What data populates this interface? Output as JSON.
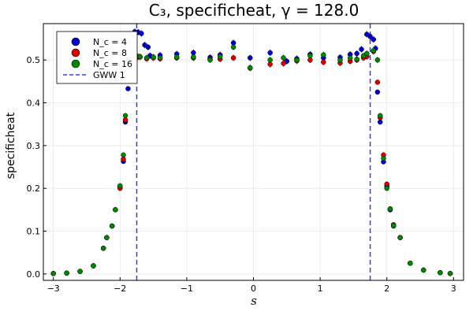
{
  "chart_data": {
    "type": "scatter",
    "title": "C₃, specificheat, γ = 128.0",
    "xlabel": "s",
    "ylabel": "specificheat",
    "xlim": [
      -3.15,
      3.15
    ],
    "ylim": [
      -0.015,
      0.585
    ],
    "x_ticks": [
      -3,
      -2,
      -1,
      0,
      1,
      2,
      3
    ],
    "x_tick_labels": [
      "−3",
      "−2",
      "−1",
      "0",
      "1",
      "2",
      "3"
    ],
    "y_ticks": [
      0.0,
      0.1,
      0.2,
      0.3,
      0.4,
      0.5
    ],
    "y_tick_labels": [
      "0.0",
      "0.1",
      "0.2",
      "0.3",
      "0.4",
      "0.5"
    ],
    "grid": true,
    "legend_position": "top-left",
    "vlines": {
      "name": "GWW 1",
      "x": [
        -1.75,
        1.75
      ],
      "color": "#3b3bd6",
      "style": "dashed"
    },
    "series": [
      {
        "name": "N_c = 4",
        "legend_label": "N_c = 4",
        "color": "#0000cd",
        "points": [
          [
            -3.0,
            0.001
          ],
          [
            -2.8,
            0.002
          ],
          [
            -2.6,
            0.006
          ],
          [
            -2.4,
            0.019
          ],
          [
            -2.25,
            0.06
          ],
          [
            -2.2,
            0.085
          ],
          [
            -2.12,
            0.112
          ],
          [
            -2.07,
            0.15
          ],
          [
            -2.0,
            0.203
          ],
          [
            -1.95,
            0.263
          ],
          [
            -1.92,
            0.355
          ],
          [
            -1.88,
            0.433
          ],
          [
            -1.85,
            0.535
          ],
          [
            -1.8,
            0.52
          ],
          [
            -1.78,
            0.566
          ],
          [
            -1.73,
            0.565
          ],
          [
            -1.68,
            0.562
          ],
          [
            -1.63,
            0.535
          ],
          [
            -1.58,
            0.53
          ],
          [
            -1.55,
            0.51
          ],
          [
            -1.4,
            0.511
          ],
          [
            -1.15,
            0.514
          ],
          [
            -0.9,
            0.517
          ],
          [
            -0.65,
            0.506
          ],
          [
            -0.5,
            0.512
          ],
          [
            -0.3,
            0.54
          ],
          [
            -0.05,
            0.505
          ],
          [
            0.25,
            0.517
          ],
          [
            0.5,
            0.497
          ],
          [
            0.65,
            0.503
          ],
          [
            0.85,
            0.513
          ],
          [
            1.05,
            0.505
          ],
          [
            1.3,
            0.506
          ],
          [
            1.45,
            0.513
          ],
          [
            1.55,
            0.515
          ],
          [
            1.62,
            0.525
          ],
          [
            1.7,
            0.56
          ],
          [
            1.75,
            0.555
          ],
          [
            1.8,
            0.548
          ],
          [
            1.83,
            0.527
          ],
          [
            1.86,
            0.425
          ],
          [
            1.9,
            0.355
          ],
          [
            1.95,
            0.262
          ],
          [
            2.0,
            0.205
          ],
          [
            2.05,
            0.15
          ],
          [
            2.1,
            0.112
          ],
          [
            2.2,
            0.085
          ],
          [
            2.35,
            0.025
          ],
          [
            2.55,
            0.009
          ],
          [
            2.8,
            0.003
          ],
          [
            2.95,
            0.001
          ]
        ]
      },
      {
        "name": "N_c = 8",
        "legend_label": "N_c = 8",
        "color": "#dd0000",
        "points": [
          [
            -3.0,
            0.001
          ],
          [
            -2.8,
            0.002
          ],
          [
            -2.6,
            0.006
          ],
          [
            -2.4,
            0.019
          ],
          [
            -2.25,
            0.06
          ],
          [
            -2.2,
            0.085
          ],
          [
            -2.12,
            0.112
          ],
          [
            -2.07,
            0.15
          ],
          [
            -2.0,
            0.2
          ],
          [
            -1.95,
            0.268
          ],
          [
            -1.92,
            0.36
          ],
          [
            -1.88,
            0.498
          ],
          [
            -1.82,
            0.512
          ],
          [
            -1.75,
            0.505
          ],
          [
            -1.7,
            0.507
          ],
          [
            -1.6,
            0.503
          ],
          [
            -1.5,
            0.505
          ],
          [
            -1.4,
            0.503
          ],
          [
            -1.15,
            0.505
          ],
          [
            -0.9,
            0.505
          ],
          [
            -0.65,
            0.502
          ],
          [
            -0.5,
            0.502
          ],
          [
            -0.3,
            0.505
          ],
          [
            -0.05,
            0.481
          ],
          [
            0.25,
            0.49
          ],
          [
            0.45,
            0.492
          ],
          [
            0.65,
            0.498
          ],
          [
            0.85,
            0.5
          ],
          [
            1.05,
            0.495
          ],
          [
            1.3,
            0.493
          ],
          [
            1.45,
            0.497
          ],
          [
            1.55,
            0.5
          ],
          [
            1.65,
            0.505
          ],
          [
            1.7,
            0.508
          ],
          [
            1.8,
            0.52
          ],
          [
            1.86,
            0.448
          ],
          [
            1.9,
            0.365
          ],
          [
            1.95,
            0.278
          ],
          [
            2.0,
            0.21
          ],
          [
            2.05,
            0.152
          ],
          [
            2.1,
            0.115
          ],
          [
            2.2,
            0.085
          ],
          [
            2.35,
            0.025
          ],
          [
            2.55,
            0.009
          ],
          [
            2.8,
            0.003
          ],
          [
            2.95,
            0.001
          ]
        ]
      },
      {
        "name": "N_c = 16",
        "legend_label": "N_c = 16",
        "color": "#008800",
        "points": [
          [
            -3.0,
            0.001
          ],
          [
            -2.8,
            0.002
          ],
          [
            -2.6,
            0.006
          ],
          [
            -2.4,
            0.019
          ],
          [
            -2.25,
            0.06
          ],
          [
            -2.2,
            0.085
          ],
          [
            -2.12,
            0.112
          ],
          [
            -2.07,
            0.15
          ],
          [
            -2.0,
            0.206
          ],
          [
            -1.95,
            0.278
          ],
          [
            -1.92,
            0.37
          ],
          [
            -1.88,
            0.505
          ],
          [
            -1.82,
            0.52
          ],
          [
            -1.75,
            0.51
          ],
          [
            -1.7,
            0.508
          ],
          [
            -1.6,
            0.505
          ],
          [
            -1.5,
            0.507
          ],
          [
            -1.4,
            0.505
          ],
          [
            -1.15,
            0.507
          ],
          [
            -0.9,
            0.507
          ],
          [
            -0.65,
            0.5
          ],
          [
            -0.5,
            0.508
          ],
          [
            -0.3,
            0.53
          ],
          [
            -0.05,
            0.482
          ],
          [
            0.25,
            0.5
          ],
          [
            0.45,
            0.505
          ],
          [
            0.65,
            0.5
          ],
          [
            0.85,
            0.51
          ],
          [
            1.05,
            0.512
          ],
          [
            1.3,
            0.5
          ],
          [
            1.45,
            0.505
          ],
          [
            1.55,
            0.502
          ],
          [
            1.65,
            0.51
          ],
          [
            1.7,
            0.515
          ],
          [
            1.8,
            0.522
          ],
          [
            1.86,
            0.5
          ],
          [
            1.9,
            0.37
          ],
          [
            1.95,
            0.27
          ],
          [
            2.0,
            0.2
          ],
          [
            2.05,
            0.152
          ],
          [
            2.1,
            0.113
          ],
          [
            2.2,
            0.085
          ],
          [
            2.35,
            0.025
          ],
          [
            2.55,
            0.009
          ],
          [
            2.8,
            0.003
          ],
          [
            2.95,
            0.001
          ]
        ]
      }
    ]
  }
}
